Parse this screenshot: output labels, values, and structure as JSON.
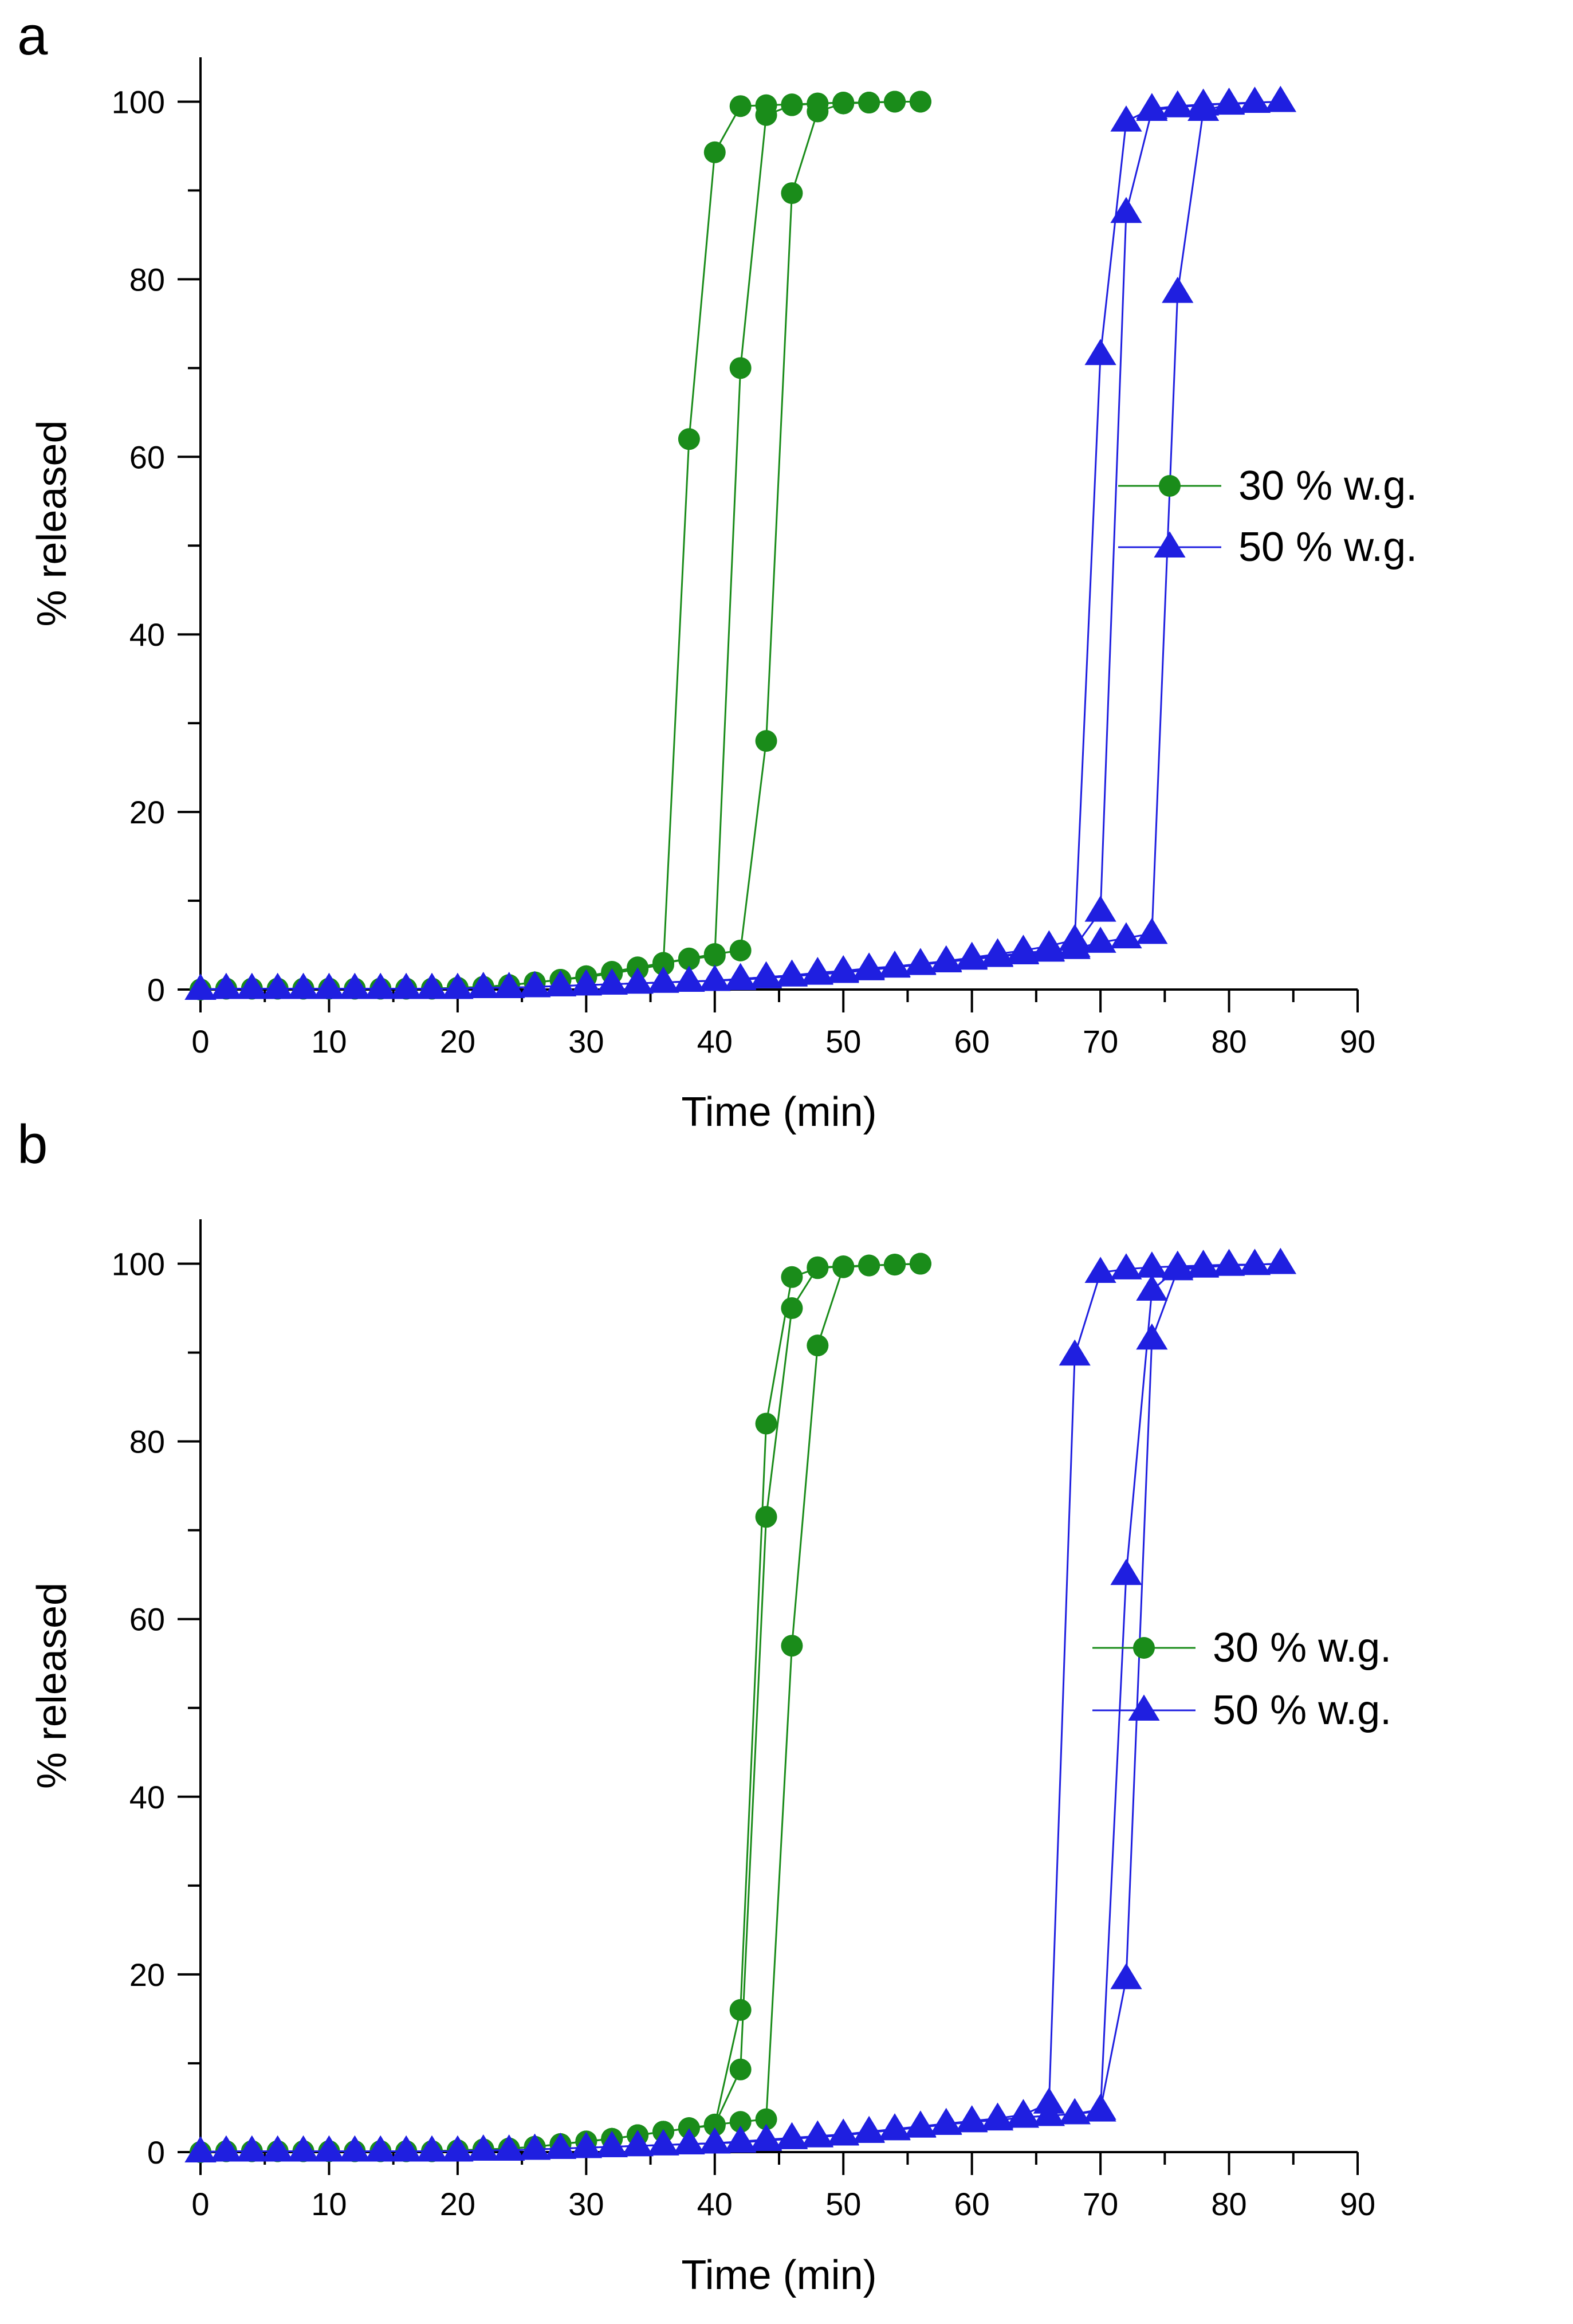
{
  "chart_data": [
    {
      "panel_label": "a",
      "type": "line",
      "xlabel": "Time (min)",
      "ylabel": "% released",
      "xlim": [
        0,
        90
      ],
      "ylim": [
        0,
        105
      ],
      "xticks": [
        0,
        10,
        20,
        30,
        40,
        50,
        60,
        70,
        80,
        90
      ],
      "xtick_labels": [
        "0",
        "10",
        "20",
        "30",
        "40",
        "50",
        "60",
        "70",
        "80",
        "90"
      ],
      "yticks": [
        0,
        20,
        40,
        60,
        80,
        100
      ],
      "ytick_labels": [
        "0",
        "20",
        "40",
        "60",
        "80",
        "100"
      ],
      "legend": {
        "position": "right-middle",
        "entries": [
          "30 % w.g.",
          "50 % w.g."
        ]
      },
      "series": [
        {
          "name": "30 % w.g.",
          "color": "#1a8c1a",
          "marker": "circle",
          "x": [
            0,
            2,
            4,
            6,
            8,
            10,
            12,
            14,
            16,
            18,
            20,
            22,
            24,
            26,
            28,
            30,
            32,
            34,
            36,
            38,
            40,
            42,
            44,
            46,
            48,
            50,
            52,
            54,
            56
          ],
          "y": [
            0,
            0.1,
            0.1,
            0.1,
            0.1,
            0.1,
            0.1,
            0.1,
            0.1,
            0.1,
            0.2,
            0.3,
            0.5,
            0.8,
            1.1,
            1.4,
            1.8,
            2.3,
            2.8,
            62,
            94.3,
            99.5,
            99.6,
            99.7,
            99.8,
            99.9,
            99.9,
            100,
            100
          ]
        },
        {
          "name": "30 % w.g.",
          "color": "#1a8c1a",
          "marker": "circle",
          "x": [
            0,
            2,
            4,
            6,
            8,
            10,
            12,
            14,
            16,
            18,
            20,
            22,
            24,
            26,
            28,
            30,
            32,
            34,
            36,
            38,
            40,
            42,
            44,
            46,
            48,
            50,
            52,
            54,
            56
          ],
          "y": [
            0,
            0.1,
            0.1,
            0.1,
            0.1,
            0.1,
            0.1,
            0.1,
            0.1,
            0.1,
            0.2,
            0.3,
            0.5,
            0.8,
            1.1,
            1.5,
            1.9,
            2.4,
            3.0,
            3.4,
            3.8,
            70,
            98.5,
            99.6,
            99.8,
            99.9,
            99.9,
            100,
            100
          ]
        },
        {
          "name": "30 % w.g.",
          "color": "#1a8c1a",
          "marker": "circle",
          "x": [
            0,
            2,
            4,
            6,
            8,
            10,
            12,
            14,
            16,
            18,
            20,
            22,
            24,
            26,
            28,
            30,
            32,
            34,
            36,
            38,
            40,
            42,
            44,
            46,
            48,
            50,
            52,
            54,
            56
          ],
          "y": [
            0,
            0.1,
            0.1,
            0.1,
            0.1,
            0.1,
            0.1,
            0.1,
            0.1,
            0.1,
            0.2,
            0.3,
            0.5,
            0.8,
            1.1,
            1.5,
            2.0,
            2.5,
            3.0,
            3.5,
            4.0,
            4.4,
            28,
            89.7,
            98.9,
            99.8,
            99.9,
            100,
            100
          ]
        },
        {
          "name": "50 % w.g.",
          "color": "#1f1fe0",
          "marker": "triangle",
          "x": [
            0,
            2,
            4,
            6,
            8,
            10,
            12,
            14,
            16,
            18,
            20,
            22,
            24,
            26,
            28,
            30,
            32,
            34,
            36,
            38,
            40,
            42,
            44,
            46,
            48,
            50,
            52,
            54,
            56,
            58,
            60,
            62,
            64,
            66,
            68,
            70,
            72,
            74,
            76,
            78,
            80,
            82,
            84
          ],
          "y": [
            0,
            0.1,
            0.1,
            0.1,
            0.1,
            0.1,
            0.1,
            0.1,
            0.1,
            0.1,
            0.1,
            0.2,
            0.2,
            0.3,
            0.4,
            0.5,
            0.6,
            0.7,
            0.8,
            0.9,
            1.0,
            1.2,
            1.4,
            1.6,
            1.9,
            2.1,
            2.4,
            2.6,
            2.9,
            3.2,
            3.6,
            4.0,
            4.4,
            4.9,
            5.6,
            71.5,
            97.8,
            99.2,
            99.5,
            99.7,
            99.8,
            99.9,
            100
          ]
        },
        {
          "name": "50 % w.g.",
          "color": "#1f1fe0",
          "marker": "triangle",
          "x": [
            0,
            2,
            4,
            6,
            8,
            10,
            12,
            14,
            16,
            18,
            20,
            22,
            24,
            26,
            28,
            30,
            32,
            34,
            36,
            38,
            40,
            42,
            44,
            46,
            48,
            50,
            52,
            54,
            56,
            58,
            60,
            62,
            64,
            66,
            68,
            70,
            72,
            74,
            76,
            78,
            80,
            82,
            84
          ],
          "y": [
            0,
            0.1,
            0.1,
            0.1,
            0.1,
            0.1,
            0.1,
            0.1,
            0.1,
            0.1,
            0.1,
            0.2,
            0.2,
            0.3,
            0.4,
            0.5,
            0.6,
            0.7,
            0.8,
            0.9,
            1.0,
            1.2,
            1.4,
            1.6,
            1.8,
            2.0,
            2.3,
            2.6,
            2.9,
            3.2,
            3.5,
            3.8,
            4.1,
            4.4,
            4.8,
            8.8,
            87.5,
            99.0,
            99.4,
            99.6,
            99.8,
            99.9,
            100
          ]
        },
        {
          "name": "50 % w.g.",
          "color": "#1f1fe0",
          "marker": "triangle",
          "x": [
            0,
            2,
            4,
            6,
            8,
            10,
            12,
            14,
            16,
            18,
            20,
            22,
            24,
            26,
            28,
            30,
            32,
            34,
            36,
            38,
            40,
            42,
            44,
            46,
            48,
            50,
            52,
            54,
            56,
            58,
            60,
            62,
            64,
            66,
            68,
            70,
            72,
            74,
            76,
            78,
            80,
            82,
            84
          ],
          "y": [
            0,
            0.1,
            0.1,
            0.1,
            0.1,
            0.1,
            0.1,
            0.1,
            0.1,
            0.1,
            0.1,
            0.2,
            0.2,
            0.3,
            0.4,
            0.5,
            0.6,
            0.7,
            0.8,
            0.9,
            1.0,
            1.1,
            1.3,
            1.5,
            1.7,
            1.9,
            2.2,
            2.5,
            2.8,
            3.1,
            3.4,
            3.7,
            4.0,
            4.3,
            4.6,
            5.3,
            5.8,
            6.3,
            78.5,
            99.0,
            99.7,
            99.9,
            100
          ]
        }
      ]
    },
    {
      "panel_label": "b",
      "type": "line",
      "xlabel": "Time (min)",
      "ylabel": "% released",
      "xlim": [
        0,
        90
      ],
      "ylim": [
        0,
        105
      ],
      "xticks": [
        0,
        10,
        20,
        30,
        40,
        50,
        60,
        70,
        80,
        90
      ],
      "xtick_labels": [
        "0",
        "10",
        "20",
        "30",
        "40",
        "50",
        "60",
        "70",
        "80",
        "90"
      ],
      "yticks": [
        0,
        20,
        40,
        60,
        80,
        100
      ],
      "ytick_labels": [
        "0",
        "20",
        "40",
        "60",
        "80",
        "100"
      ],
      "legend": {
        "position": "right-middle",
        "entries": [
          "30 % w.g.",
          "50 % w.g."
        ]
      },
      "series": [
        {
          "name": "30 % w.g.",
          "color": "#1a8c1a",
          "marker": "circle",
          "x": [
            0,
            2,
            4,
            6,
            8,
            10,
            12,
            14,
            16,
            18,
            20,
            22,
            24,
            26,
            28,
            30,
            32,
            34,
            36,
            38,
            40,
            42,
            44,
            46,
            48,
            50,
            52,
            54,
            56
          ],
          "y": [
            0,
            0.1,
            0.1,
            0.1,
            0.1,
            0.1,
            0.1,
            0.1,
            0.1,
            0.1,
            0.2,
            0.3,
            0.4,
            0.6,
            0.9,
            1.2,
            1.5,
            1.9,
            2.3,
            2.7,
            3.0,
            16,
            82,
            98.5,
            99.5,
            99.7,
            99.8,
            99.9,
            100
          ]
        },
        {
          "name": "30 % w.g.",
          "color": "#1a8c1a",
          "marker": "circle",
          "x": [
            0,
            2,
            4,
            6,
            8,
            10,
            12,
            14,
            16,
            18,
            20,
            22,
            24,
            26,
            28,
            30,
            32,
            34,
            36,
            38,
            40,
            42,
            44,
            46,
            48,
            50,
            52,
            54,
            56
          ],
          "y": [
            0,
            0.1,
            0.1,
            0.1,
            0.1,
            0.1,
            0.1,
            0.1,
            0.1,
            0.1,
            0.2,
            0.3,
            0.4,
            0.6,
            0.9,
            1.2,
            1.5,
            1.9,
            2.3,
            2.7,
            3.1,
            9.3,
            71.5,
            95,
            99.6,
            99.7,
            99.8,
            99.9,
            100
          ]
        },
        {
          "name": "30 % w.g.",
          "color": "#1a8c1a",
          "marker": "circle",
          "x": [
            0,
            2,
            4,
            6,
            8,
            10,
            12,
            14,
            16,
            18,
            20,
            22,
            24,
            26,
            28,
            30,
            32,
            34,
            36,
            38,
            40,
            42,
            44,
            46,
            48,
            50,
            52,
            54,
            56
          ],
          "y": [
            0,
            0.1,
            0.1,
            0.1,
            0.1,
            0.1,
            0.1,
            0.1,
            0.1,
            0.1,
            0.2,
            0.3,
            0.4,
            0.6,
            0.9,
            1.2,
            1.5,
            1.9,
            2.3,
            2.7,
            3.1,
            3.4,
            3.7,
            57,
            90.8,
            99.6,
            99.8,
            99.9,
            100
          ]
        },
        {
          "name": "50 % w.g.",
          "color": "#1f1fe0",
          "marker": "triangle",
          "x": [
            0,
            2,
            4,
            6,
            8,
            10,
            12,
            14,
            16,
            18,
            20,
            22,
            24,
            26,
            28,
            30,
            32,
            34,
            36,
            38,
            40,
            42,
            44,
            46,
            48,
            50,
            52,
            54,
            56,
            58,
            60,
            62,
            64,
            66,
            68,
            70,
            72,
            74,
            76,
            78,
            80,
            82,
            84
          ],
          "y": [
            0,
            0.1,
            0.1,
            0.1,
            0.1,
            0.1,
            0.1,
            0.1,
            0.1,
            0.1,
            0.1,
            0.2,
            0.2,
            0.3,
            0.4,
            0.5,
            0.6,
            0.7,
            0.8,
            0.9,
            1.0,
            1.2,
            1.4,
            1.6,
            1.8,
            2.0,
            2.3,
            2.6,
            2.9,
            3.2,
            3.5,
            3.8,
            4.2,
            5.5,
            89.7,
            99.0,
            99.4,
            99.6,
            99.7,
            99.8,
            99.9,
            99.9,
            100
          ]
        },
        {
          "name": "50 % w.g.",
          "color": "#1f1fe0",
          "marker": "triangle",
          "x": [
            0,
            2,
            4,
            6,
            8,
            10,
            12,
            14,
            16,
            18,
            20,
            22,
            24,
            26,
            28,
            30,
            32,
            34,
            36,
            38,
            40,
            42,
            44,
            46,
            48,
            50,
            52,
            54,
            56,
            58,
            60,
            62,
            64,
            66,
            68,
            70,
            72,
            74,
            76,
            78,
            80,
            82,
            84
          ],
          "y": [
            0,
            0.1,
            0.1,
            0.1,
            0.1,
            0.1,
            0.1,
            0.1,
            0.1,
            0.1,
            0.1,
            0.2,
            0.2,
            0.3,
            0.4,
            0.5,
            0.6,
            0.7,
            0.8,
            0.9,
            1.0,
            1.1,
            1.3,
            1.5,
            1.7,
            1.9,
            2.2,
            2.5,
            2.8,
            3.1,
            3.4,
            3.6,
            3.9,
            4.1,
            4.3,
            4.6,
            65,
            97,
            99.5,
            99.7,
            99.8,
            99.9,
            100
          ]
        },
        {
          "name": "50 % w.g.",
          "color": "#1f1fe0",
          "marker": "triangle",
          "x": [
            0,
            2,
            4,
            6,
            8,
            10,
            12,
            14,
            16,
            18,
            20,
            22,
            24,
            26,
            28,
            30,
            32,
            34,
            36,
            38,
            40,
            42,
            44,
            46,
            48,
            50,
            52,
            54,
            56,
            58,
            60,
            62,
            64,
            66,
            68,
            70,
            72,
            74,
            76,
            78,
            80,
            82,
            84
          ],
          "y": [
            0,
            0.1,
            0.1,
            0.1,
            0.1,
            0.1,
            0.1,
            0.1,
            0.1,
            0.1,
            0.1,
            0.2,
            0.2,
            0.3,
            0.4,
            0.5,
            0.6,
            0.7,
            0.8,
            0.9,
            1.0,
            1.1,
            1.3,
            1.5,
            1.7,
            1.9,
            2.2,
            2.5,
            2.8,
            3.1,
            3.4,
            3.6,
            3.9,
            4.1,
            4.3,
            4.8,
            19.5,
            91.5,
            99.3,
            99.6,
            99.8,
            99.9,
            100
          ]
        }
      ]
    }
  ]
}
